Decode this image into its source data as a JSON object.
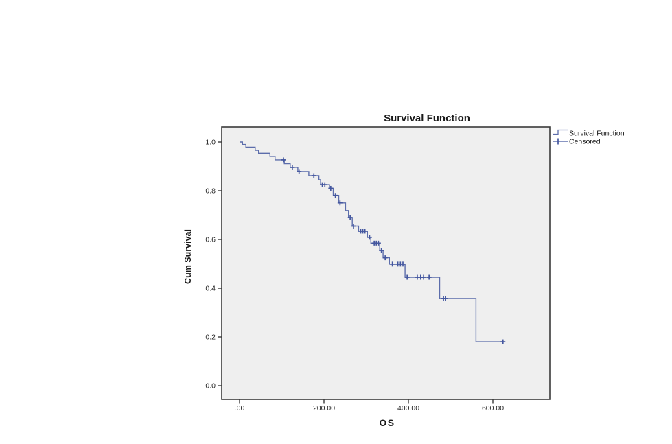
{
  "chart_data": {
    "type": "line",
    "variant": "kaplan_meier_step_function",
    "title": "Survival Function",
    "xlabel": "OS",
    "ylabel": "Cum Survival",
    "legend": [
      "Survival Function",
      "Censored"
    ],
    "legend_position": "outside-top-right",
    "grid": false,
    "xlim": [
      -42,
      735
    ],
    "ylim": [
      -0.057,
      1.062
    ],
    "x_axis": {
      "tick_labels": [
        ".00",
        "200.00",
        "400.00",
        "600.00"
      ],
      "tick_values": [
        0,
        200,
        400,
        600
      ]
    },
    "y_axis": {
      "tick_labels": [
        "0.0",
        "0.2",
        "0.4",
        "0.6",
        "0.8",
        "1.0"
      ],
      "tick_values": [
        0,
        0.2,
        0.4,
        0.6,
        0.8,
        1.0
      ]
    },
    "series": [
      {
        "name": "Survival Function",
        "steps": [
          [
            0,
            1.0
          ],
          [
            7,
            0.99
          ],
          [
            15,
            0.979
          ],
          [
            37,
            0.966
          ],
          [
            45,
            0.954
          ],
          [
            72,
            0.941
          ],
          [
            84,
            0.927
          ],
          [
            106,
            0.911
          ],
          [
            120,
            0.896
          ],
          [
            138,
            0.879
          ],
          [
            164,
            0.862
          ],
          [
            188,
            0.845
          ],
          [
            192,
            0.825
          ],
          [
            213,
            0.81
          ],
          [
            222,
            0.781
          ],
          [
            235,
            0.75
          ],
          [
            251,
            0.719
          ],
          [
            258,
            0.69
          ],
          [
            267,
            0.655
          ],
          [
            282,
            0.634
          ],
          [
            303,
            0.609
          ],
          [
            311,
            0.585
          ],
          [
            332,
            0.555
          ],
          [
            340,
            0.525
          ],
          [
            355,
            0.499
          ],
          [
            392,
            0.445
          ],
          [
            474,
            0.358
          ],
          [
            560,
            0.18
          ]
        ],
        "end_time": 624
      }
    ],
    "censored": [
      [
        104,
        0.927
      ],
      [
        125,
        0.896
      ],
      [
        141,
        0.879
      ],
      [
        176,
        0.862
      ],
      [
        196,
        0.825
      ],
      [
        202,
        0.825
      ],
      [
        216,
        0.81
      ],
      [
        227,
        0.781
      ],
      [
        238,
        0.75
      ],
      [
        262,
        0.69
      ],
      [
        270,
        0.655
      ],
      [
        287,
        0.634
      ],
      [
        292,
        0.634
      ],
      [
        297,
        0.634
      ],
      [
        308,
        0.609
      ],
      [
        319,
        0.585
      ],
      [
        324,
        0.585
      ],
      [
        329,
        0.585
      ],
      [
        336,
        0.555
      ],
      [
        345,
        0.525
      ],
      [
        362,
        0.499
      ],
      [
        375,
        0.499
      ],
      [
        381,
        0.499
      ],
      [
        387,
        0.499
      ],
      [
        397,
        0.445
      ],
      [
        421,
        0.445
      ],
      [
        429,
        0.445
      ],
      [
        436,
        0.445
      ],
      [
        449,
        0.445
      ],
      [
        483,
        0.358
      ],
      [
        488,
        0.358
      ],
      [
        624,
        0.18
      ]
    ],
    "colors": {
      "curve": "#5c6dab",
      "censor": "#44579f",
      "plot_background": "#efefef",
      "frame": "#3a3a3a",
      "text": "#1a1a1a"
    }
  }
}
